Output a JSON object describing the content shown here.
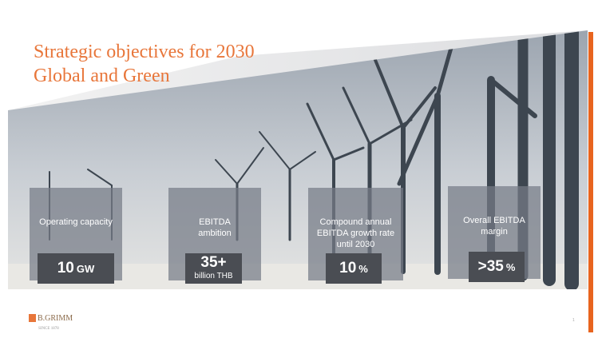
{
  "header": {
    "title": "Strategic objectives for 2030",
    "subtitle": "Global and Green"
  },
  "objectives": [
    {
      "label": "Operating capacity",
      "value": "10",
      "unit": "GW"
    },
    {
      "label": "EBITDA ambition",
      "value": "35+",
      "unit": "billion THB"
    },
    {
      "label": "Compound annual EBITDA growth rate until 2030",
      "value": "10",
      "unit": "%"
    },
    {
      "label": "Overall EBITDA margin",
      "value": ">35",
      "unit": "%"
    }
  ],
  "logo": {
    "name": "B.GRIMM",
    "tagline": "SINCE 1878"
  },
  "page_number": "1"
}
